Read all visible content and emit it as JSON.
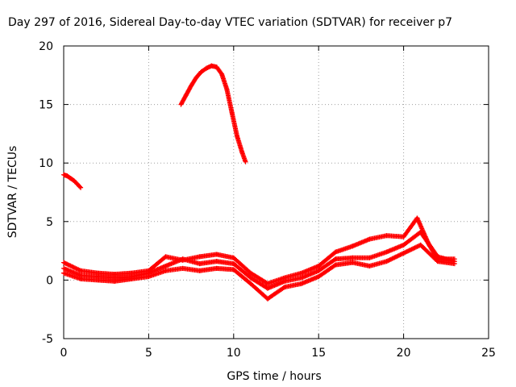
{
  "chart_data": {
    "type": "scatter",
    "title": "Day 297 of 2016, Sidereal Day-to-day VTEC variation (SDTVAR) for receiver p7",
    "xlabel": "GPS time / hours",
    "ylabel": "SDTVAR / TECUs",
    "xlim": [
      0,
      25
    ],
    "ylim": [
      -5,
      20
    ],
    "xticks": [
      0,
      5,
      10,
      15,
      20,
      25
    ],
    "yticks": [
      -5,
      0,
      5,
      10,
      15,
      20
    ],
    "xtick_labels": [
      "0",
      "5",
      "10",
      "15",
      "20",
      "25"
    ],
    "ytick_labels": [
      "-5",
      "0",
      "5",
      "10",
      "15",
      "20"
    ],
    "grid": true,
    "marker": "+",
    "color": "#ff0000",
    "series": [
      {
        "name": "early-high-arc",
        "x": [
          0.0,
          0.2,
          0.4,
          0.6,
          0.8,
          1.0
        ],
        "y": [
          9.0,
          8.9,
          8.7,
          8.5,
          8.2,
          7.9
        ]
      },
      {
        "name": "midday-high-arc",
        "x": [
          6.9,
          7.2,
          7.5,
          7.8,
          8.1,
          8.4,
          8.7,
          9.0,
          9.3,
          9.6,
          9.9,
          10.2,
          10.5,
          10.7
        ],
        "y": [
          15.0,
          15.8,
          16.6,
          17.3,
          17.8,
          18.1,
          18.3,
          18.2,
          17.6,
          16.3,
          14.3,
          12.3,
          10.9,
          10.1
        ]
      },
      {
        "name": "low-band-a",
        "x": [
          0.0,
          1,
          2,
          3,
          4,
          5,
          6,
          7,
          8,
          9,
          10,
          11,
          12,
          13,
          14,
          15,
          16,
          17,
          18,
          19,
          20,
          20.8,
          21.5,
          22,
          23
        ],
        "y": [
          1.5,
          0.8,
          0.6,
          0.5,
          0.6,
          0.8,
          2.0,
          1.7,
          2.0,
          2.2,
          1.9,
          0.6,
          -0.3,
          0.2,
          0.6,
          1.2,
          2.4,
          2.9,
          3.5,
          3.8,
          3.7,
          5.3,
          3.0,
          1.8,
          1.8
        ]
      },
      {
        "name": "low-band-b",
        "x": [
          0.0,
          1,
          2,
          3,
          4,
          5,
          6,
          7,
          8,
          9,
          10,
          11,
          12,
          13,
          14,
          15,
          16,
          17,
          18,
          19,
          20,
          21,
          22,
          23
        ],
        "y": [
          1.0,
          0.4,
          0.3,
          0.2,
          0.3,
          0.6,
          1.2,
          1.8,
          1.4,
          1.6,
          1.4,
          0.2,
          -0.7,
          -0.1,
          0.2,
          0.8,
          1.8,
          1.9,
          1.9,
          2.4,
          3.0,
          4.1,
          2.0,
          1.6
        ]
      },
      {
        "name": "low-band-c",
        "x": [
          0.0,
          1,
          2,
          3,
          4,
          5,
          6,
          7,
          8,
          9,
          10,
          11,
          12,
          13,
          14,
          15,
          16,
          17,
          18,
          19,
          20,
          21,
          22,
          23
        ],
        "y": [
          0.6,
          0.1,
          0.0,
          -0.1,
          0.1,
          0.3,
          0.8,
          1.0,
          0.8,
          1.0,
          0.9,
          -0.3,
          -1.6,
          -0.6,
          -0.3,
          0.3,
          1.3,
          1.5,
          1.2,
          1.6,
          2.3,
          3.0,
          1.6,
          1.4
        ]
      }
    ]
  }
}
